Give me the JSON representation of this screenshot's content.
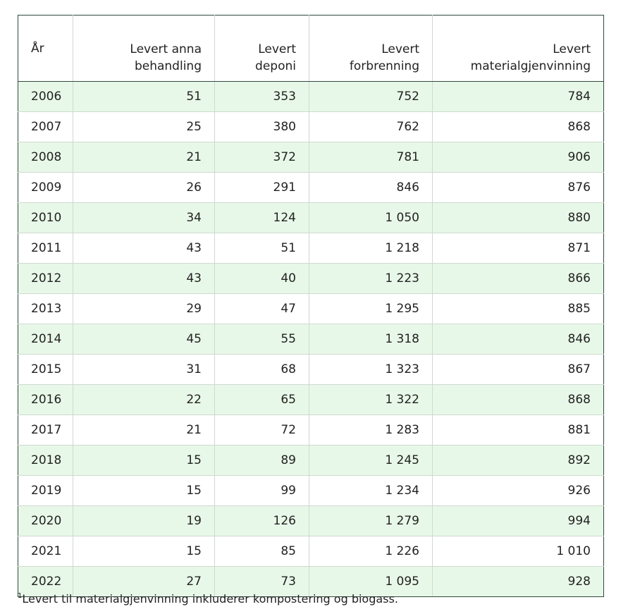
{
  "table": {
    "headers": [
      "År",
      "Levert anna behandling",
      "Levert deponi",
      "Levert forbrenning",
      "Levert materialgjenvinning"
    ],
    "rows": [
      [
        "2006",
        "51",
        "353",
        "752",
        "784"
      ],
      [
        "2007",
        "25",
        "380",
        "762",
        "868"
      ],
      [
        "2008",
        "21",
        "372",
        "781",
        "906"
      ],
      [
        "2009",
        "26",
        "291",
        "846",
        "876"
      ],
      [
        "2010",
        "34",
        "124",
        "1 050",
        "880"
      ],
      [
        "2011",
        "43",
        "51",
        "1 218",
        "871"
      ],
      [
        "2012",
        "43",
        "40",
        "1 223",
        "866"
      ],
      [
        "2013",
        "29",
        "47",
        "1 295",
        "885"
      ],
      [
        "2014",
        "45",
        "55",
        "1 318",
        "846"
      ],
      [
        "2015",
        "31",
        "68",
        "1 323",
        "867"
      ],
      [
        "2016",
        "22",
        "65",
        "1 322",
        "868"
      ],
      [
        "2017",
        "21",
        "72",
        "1 283",
        "881"
      ],
      [
        "2018",
        "15",
        "89",
        "1 245",
        "892"
      ],
      [
        "2019",
        "15",
        "99",
        "1 234",
        "926"
      ],
      [
        "2020",
        "19",
        "126",
        "1 279",
        "994"
      ],
      [
        "2021",
        "15",
        "85",
        "1 226",
        "1 010"
      ],
      [
        "2022",
        "27",
        "73",
        "1 095",
        "928"
      ]
    ]
  },
  "footnote": {
    "marker": "1",
    "text": "Levert til materialgjenvinning inkluderer kompostering og biogass."
  },
  "colors": {
    "row_stripe": "#e8f8e8",
    "border": "#cfd8d2",
    "border_dark": "#2f4a3c"
  }
}
